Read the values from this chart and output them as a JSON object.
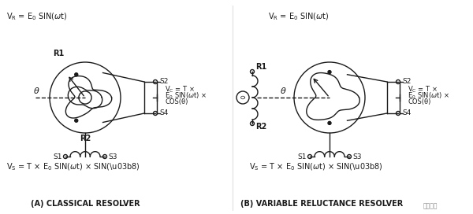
{
  "bg_color": "#ffffff",
  "line_color": "#1a1a1a",
  "title_A": "(A) CLASSICAL RESOLVER",
  "title_B": "(B) VARIABLE RELUCTANCE RESOLVER",
  "theta_label": "θ"
}
